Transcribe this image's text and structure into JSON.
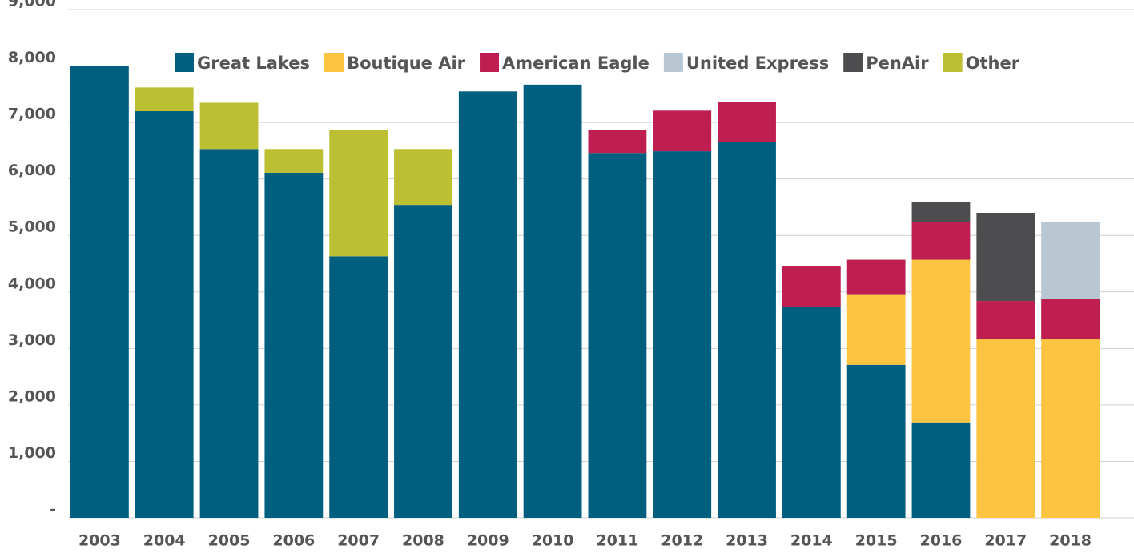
{
  "chart_data": {
    "type": "stacked_bar",
    "categories": [
      "2003",
      "2004",
      "2005",
      "2006",
      "2007",
      "2008",
      "2009",
      "2010",
      "2011",
      "2012",
      "2013",
      "2014",
      "2015",
      "2016",
      "2017",
      "2018"
    ],
    "series": [
      {
        "name": "Great Lakes",
        "color": "#005f7f",
        "values": [
          8000,
          7200,
          6530,
          6110,
          4630,
          5540,
          7550,
          7670,
          6460,
          6490,
          6650,
          3730,
          2710,
          1690,
          null,
          null
        ]
      },
      {
        "name": "Boutique Air",
        "color": "#fdc441",
        "values": [
          null,
          null,
          null,
          null,
          null,
          null,
          null,
          null,
          null,
          null,
          null,
          null,
          1250,
          2880,
          3160,
          3160
        ]
      },
      {
        "name": "American Eagle",
        "color": "#be1e50",
        "values": [
          null,
          null,
          null,
          null,
          null,
          null,
          null,
          null,
          410,
          720,
          720,
          720,
          610,
          670,
          680,
          720
        ]
      },
      {
        "name": "United Express",
        "color": "#b8c7d2",
        "values": [
          null,
          null,
          null,
          null,
          null,
          null,
          null,
          null,
          null,
          null,
          null,
          null,
          null,
          null,
          null,
          1360
        ]
      },
      {
        "name": "PenAir",
        "color": "#4d4d4f",
        "values": [
          null,
          null,
          null,
          null,
          null,
          null,
          null,
          null,
          null,
          null,
          null,
          null,
          null,
          350,
          1560,
          null
        ]
      },
      {
        "name": "Other",
        "color": "#bcbf32",
        "values": [
          null,
          420,
          820,
          420,
          2240,
          990,
          null,
          null,
          null,
          null,
          null,
          null,
          null,
          null,
          null,
          null
        ]
      }
    ],
    "ylim": [
      0,
      9000
    ],
    "yticks": [
      {
        "value": 0,
        "label": "-"
      },
      {
        "value": 1000,
        "label": "1,000"
      },
      {
        "value": 2000,
        "label": "2,000"
      },
      {
        "value": 3000,
        "label": "3,000"
      },
      {
        "value": 4000,
        "label": "4,000"
      },
      {
        "value": 5000,
        "label": "5,000"
      },
      {
        "value": 6000,
        "label": "6,000"
      },
      {
        "value": 7000,
        "label": "7,000"
      },
      {
        "value": 8000,
        "label": "8,000"
      },
      {
        "value": 9000,
        "label": "9,000"
      }
    ],
    "grid": true,
    "legend": "top"
  }
}
